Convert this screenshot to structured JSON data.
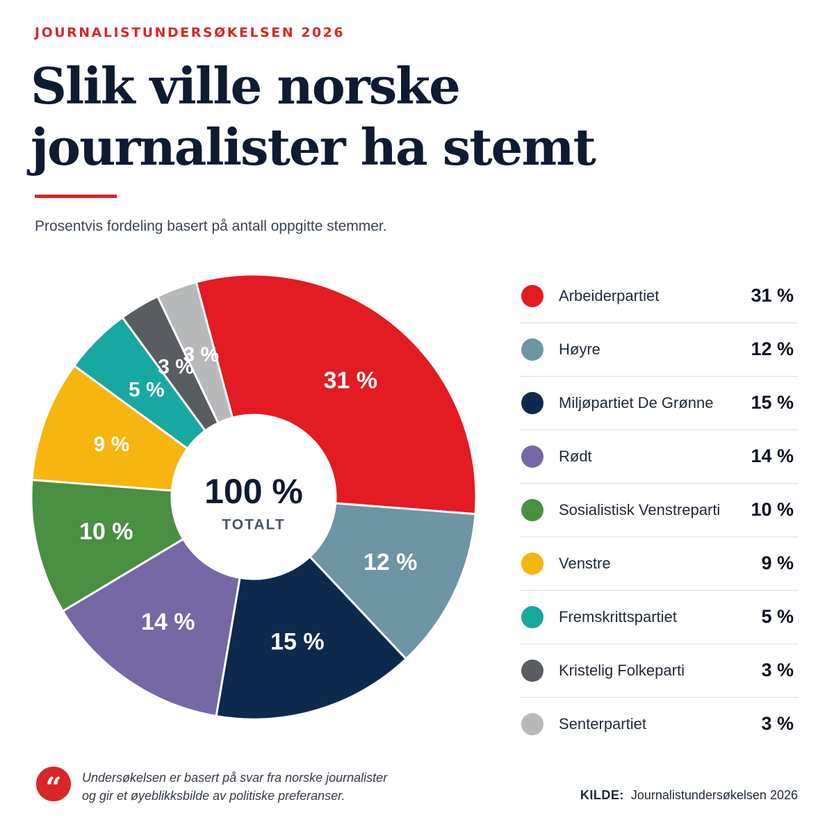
{
  "header": {
    "kicker": "JOURNALISTUNDERSØKELSEN 2026",
    "title_line1": "Slik ville norske",
    "title_line2": "journalister ha stemt",
    "subtitle": "Prosentvis fordeling basert på antall oppgitte stemmer."
  },
  "chart_data": {
    "type": "pie",
    "subtype": "donut",
    "title": "Slik ville norske journalister ha stemt",
    "subtitle": "Prosentvis fordeling basert på antall oppgitte stemmer.",
    "center_value": "100 %",
    "center_label": "TOTALT",
    "categories": [
      "Arbeiderpartiet",
      "Høyre",
      "Miljøpartiet De Grønne",
      "Rødt",
      "Sosialistisk Venstreparti",
      "Venstre",
      "Fremskrittspartiet",
      "Kristelig Folkeparti",
      "Senterpartiet"
    ],
    "values": [
      31,
      12,
      15,
      14,
      10,
      9,
      5,
      3,
      3
    ],
    "labels": [
      "31 %",
      "12 %",
      "15 %",
      "14 %",
      "10 %",
      "9 %",
      "5 %",
      "3 %",
      "3 %"
    ],
    "colors": [
      "#e31b23",
      "#6d95a4",
      "#0d2a4e",
      "#7668a5",
      "#4a8f42",
      "#f6b50f",
      "#16a8a1",
      "#595c60",
      "#b8b9bb"
    ],
    "legend_position": "right",
    "unit": "%"
  },
  "footer": {
    "quote_icon": "quote-icon",
    "quote_glyph": "“",
    "note_line1": "Undersøkelsen er basert på svar fra norske journalister",
    "note_line2": "og gir et øyeblikksbilde av politiske preferanser.",
    "source_label": "KILDE:",
    "source_value": "Journalistundersøkelsen 2026"
  }
}
